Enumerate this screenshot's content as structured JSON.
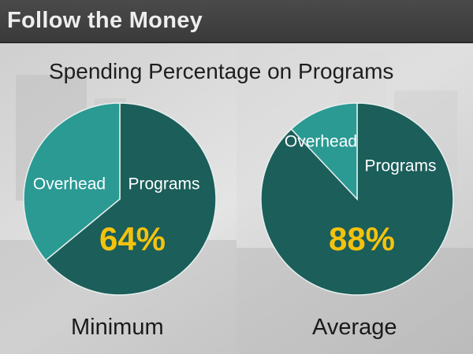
{
  "header": {
    "title": "Follow the Money"
  },
  "slide": {
    "title": "Spending Percentage on Programs"
  },
  "colors": {
    "programs": "#1b5e5a",
    "overhead": "#2a9a93",
    "percent_text": "#f4c20d",
    "slice_border": "#e8f0ef",
    "label_text": "#ffffff"
  },
  "chart_data": [
    {
      "type": "pie",
      "caption": "Minimum",
      "slices": [
        {
          "label": "Programs",
          "value": 64
        },
        {
          "label": "Overhead",
          "value": 36
        }
      ],
      "annotation": "64%"
    },
    {
      "type": "pie",
      "caption": "Average",
      "slices": [
        {
          "label": "Programs",
          "value": 88
        },
        {
          "label": "Overhead",
          "value": 12
        }
      ],
      "annotation": "88%"
    }
  ]
}
